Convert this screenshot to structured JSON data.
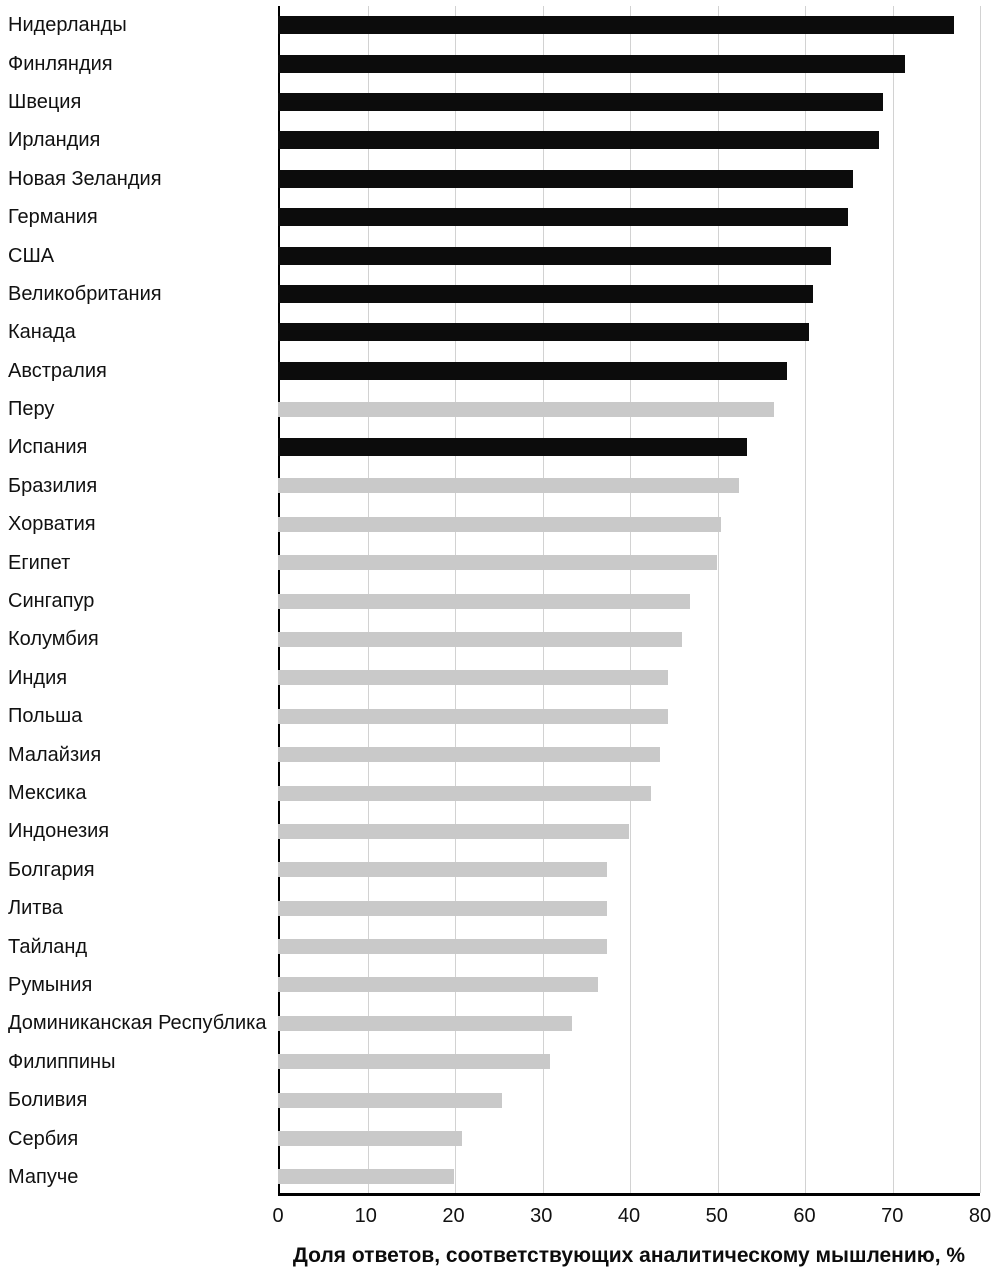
{
  "chart_data": {
    "type": "bar",
    "orientation": "horizontal",
    "title": "",
    "xlabel": "Доля ответов, соответствующих аналитическому мышлению, %",
    "ylabel": "",
    "xlim": [
      0,
      80
    ],
    "xticks": [
      0,
      10,
      20,
      30,
      40,
      50,
      60,
      70,
      80
    ],
    "grid": "vertical",
    "legend": "none",
    "colors": {
      "highlight": "#0c0c0c",
      "default": "#c9c9c9"
    },
    "bars": [
      {
        "label": "Нидерланды",
        "value": 77,
        "color": "black"
      },
      {
        "label": "Финляндия",
        "value": 71.5,
        "color": "black"
      },
      {
        "label": "Швеция",
        "value": 69,
        "color": "black"
      },
      {
        "label": "Ирландия",
        "value": 68.5,
        "color": "black"
      },
      {
        "label": "Новая Зеландия",
        "value": 65.5,
        "color": "black"
      },
      {
        "label": "Германия",
        "value": 65,
        "color": "black"
      },
      {
        "label": "США",
        "value": 63,
        "color": "black"
      },
      {
        "label": "Великобритания",
        "value": 61,
        "color": "black"
      },
      {
        "label": "Канада",
        "value": 60.5,
        "color": "black"
      },
      {
        "label": "Австралия",
        "value": 58,
        "color": "black"
      },
      {
        "label": "Перу",
        "value": 56.5,
        "color": "gray"
      },
      {
        "label": "Испания",
        "value": 53.5,
        "color": "black"
      },
      {
        "label": "Бразилия",
        "value": 52.5,
        "color": "gray"
      },
      {
        "label": "Хорватия",
        "value": 50.5,
        "color": "gray"
      },
      {
        "label": "Египет",
        "value": 50,
        "color": "gray"
      },
      {
        "label": "Сингапур",
        "value": 47,
        "color": "gray"
      },
      {
        "label": "Колумбия",
        "value": 46,
        "color": "gray"
      },
      {
        "label": "Индия",
        "value": 44.5,
        "color": "gray"
      },
      {
        "label": "Польша",
        "value": 44.5,
        "color": "gray"
      },
      {
        "label": "Малайзия",
        "value": 43.5,
        "color": "gray"
      },
      {
        "label": "Мексика",
        "value": 42.5,
        "color": "gray"
      },
      {
        "label": "Индонезия",
        "value": 40,
        "color": "gray"
      },
      {
        "label": "Болгария",
        "value": 37.5,
        "color": "gray"
      },
      {
        "label": "Литва",
        "value": 37.5,
        "color": "gray"
      },
      {
        "label": "Тайланд",
        "value": 37.5,
        "color": "gray"
      },
      {
        "label": "Румыния",
        "value": 36.5,
        "color": "gray"
      },
      {
        "label": "Доминиканская Республика",
        "value": 33.5,
        "color": "gray"
      },
      {
        "label": "Филиппины",
        "value": 31,
        "color": "gray"
      },
      {
        "label": "Боливия",
        "value": 25.5,
        "color": "gray"
      },
      {
        "label": "Сербия",
        "value": 21,
        "color": "gray"
      },
      {
        "label": "Мапуче",
        "value": 20,
        "color": "gray"
      }
    ]
  }
}
